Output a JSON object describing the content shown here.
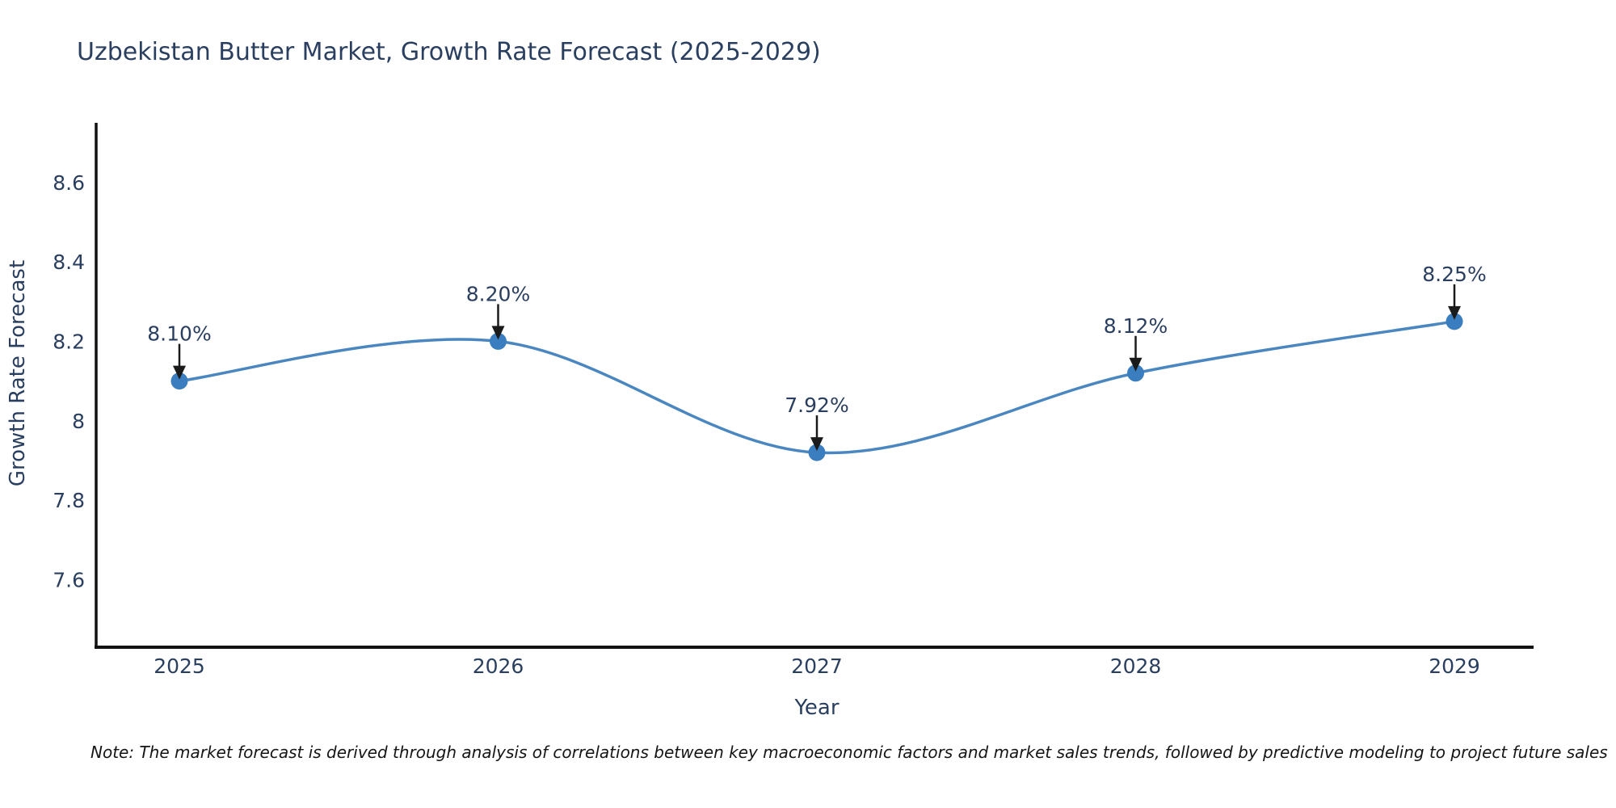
{
  "chart_data": {
    "type": "line",
    "line_shape": "spline",
    "title": "Uzbekistan Butter Market, Growth Rate Forecast (2025-2029)",
    "xlabel": "Year",
    "ylabel": "Growth Rate Forecast",
    "x": [
      2025,
      2026,
      2027,
      2028,
      2029
    ],
    "series": [
      {
        "name": "Growth Rate Forecast",
        "values": [
          8.1,
          8.2,
          7.92,
          8.12,
          8.25
        ]
      }
    ],
    "point_labels": [
      "8.10%",
      "8.20%",
      "7.92%",
      "8.12%",
      "8.25%"
    ],
    "x_tick_labels": [
      "2025",
      "2026",
      "2027",
      "2028",
      "2029"
    ],
    "y_tick_labels": [
      "8.6",
      "8.4",
      "8.2",
      "8",
      "7.8",
      "7.6"
    ],
    "y_tick_values": [
      8.6,
      8.4,
      8.2,
      8.0,
      7.8,
      7.6
    ],
    "ylim": [
      7.43,
      8.75
    ],
    "grid": false,
    "legend": "none",
    "markers": true,
    "annotation_arrows": true,
    "note": "Note: The market forecast is derived through analysis of correlations between key macroeconomic factors and market sales trends, followed by predictive modeling to project future sales",
    "colors": {
      "line": "#4a86c0",
      "marker": "#3a7ebf",
      "text": "#2a3f5f",
      "axis_line": "#111111",
      "arrow": "#1a1a1a",
      "note_text": "#151515",
      "background": "#ffffff"
    }
  }
}
